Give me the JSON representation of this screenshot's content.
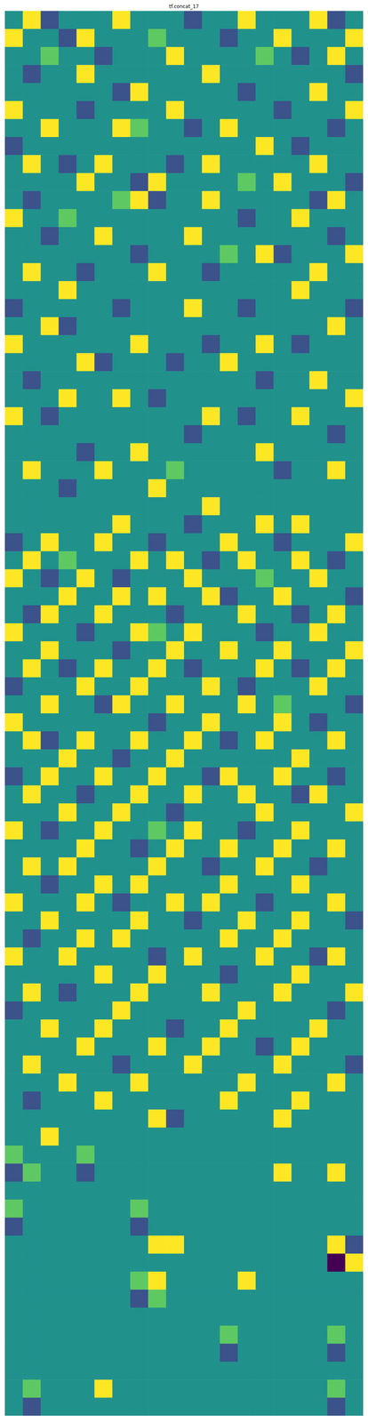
{
  "chart_data": {
    "type": "heatmap",
    "title": "tf.concat_17",
    "tick_labels": false,
    "color_range": [
      0,
      4
    ],
    "cells": [
      [
        2,
        4,
        1,
        2,
        2,
        2,
        4,
        2,
        2,
        2,
        1,
        2,
        2,
        4,
        2,
        2,
        2,
        4,
        1,
        2
      ],
      [
        4,
        2,
        2,
        1,
        4,
        2,
        2,
        2,
        3,
        2,
        2,
        2,
        1,
        2,
        2,
        4,
        2,
        2,
        2,
        4
      ],
      [
        2,
        2,
        3,
        2,
        2,
        1,
        2,
        2,
        2,
        4,
        2,
        2,
        2,
        2,
        3,
        2,
        1,
        2,
        4,
        2
      ],
      [
        2,
        1,
        2,
        2,
        4,
        2,
        2,
        2,
        2,
        2,
        2,
        4,
        2,
        2,
        2,
        2,
        2,
        2,
        2,
        1
      ],
      [
        2,
        2,
        2,
        2,
        2,
        2,
        1,
        4,
        2,
        2,
        2,
        2,
        2,
        1,
        2,
        2,
        2,
        4,
        2,
        2
      ],
      [
        4,
        2,
        2,
        2,
        1,
        2,
        2,
        2,
        2,
        4,
        2,
        2,
        2,
        2,
        2,
        1,
        2,
        2,
        2,
        4
      ],
      [
        2,
        2,
        4,
        2,
        2,
        2,
        4,
        3,
        2,
        2,
        1,
        2,
        4,
        2,
        2,
        2,
        2,
        2,
        1,
        2
      ],
      [
        1,
        2,
        2,
        2,
        2,
        2,
        2,
        2,
        2,
        2,
        2,
        2,
        2,
        2,
        4,
        2,
        1,
        2,
        2,
        2
      ],
      [
        2,
        4,
        2,
        1,
        2,
        4,
        2,
        2,
        2,
        1,
        2,
        4,
        2,
        2,
        2,
        2,
        2,
        4,
        2,
        2
      ],
      [
        2,
        2,
        2,
        2,
        4,
        2,
        2,
        1,
        4,
        2,
        2,
        2,
        2,
        3,
        2,
        4,
        2,
        2,
        2,
        1
      ],
      [
        2,
        1,
        2,
        2,
        2,
        2,
        3,
        4,
        1,
        2,
        2,
        4,
        2,
        2,
        2,
        2,
        2,
        1,
        4,
        2
      ],
      [
        4,
        2,
        2,
        3,
        2,
        2,
        2,
        2,
        2,
        2,
        2,
        2,
        2,
        1,
        2,
        2,
        4,
        2,
        2,
        2
      ],
      [
        2,
        2,
        1,
        2,
        2,
        4,
        2,
        2,
        2,
        2,
        4,
        2,
        2,
        2,
        2,
        2,
        2,
        2,
        1,
        2
      ],
      [
        2,
        2,
        2,
        2,
        2,
        2,
        2,
        1,
        2,
        2,
        2,
        2,
        3,
        2,
        4,
        1,
        2,
        2,
        2,
        4
      ],
      [
        2,
        4,
        2,
        2,
        1,
        2,
        2,
        2,
        4,
        2,
        2,
        1,
        2,
        2,
        2,
        2,
        2,
        4,
        2,
        2
      ],
      [
        2,
        2,
        2,
        4,
        2,
        2,
        2,
        2,
        2,
        2,
        2,
        2,
        2,
        2,
        2,
        2,
        4,
        2,
        2,
        2
      ],
      [
        1,
        2,
        2,
        2,
        2,
        2,
        1,
        2,
        2,
        2,
        4,
        2,
        2,
        1,
        2,
        2,
        2,
        2,
        2,
        1
      ],
      [
        2,
        2,
        4,
        1,
        2,
        2,
        2,
        2,
        2,
        2,
        2,
        2,
        2,
        2,
        2,
        2,
        2,
        2,
        4,
        2
      ],
      [
        4,
        2,
        2,
        2,
        2,
        2,
        2,
        4,
        2,
        2,
        2,
        1,
        2,
        2,
        4,
        2,
        1,
        2,
        2,
        2
      ],
      [
        2,
        2,
        2,
        2,
        4,
        1,
        2,
        2,
        2,
        1,
        2,
        2,
        4,
        2,
        2,
        2,
        2,
        2,
        2,
        2
      ],
      [
        2,
        1,
        2,
        2,
        2,
        2,
        2,
        2,
        2,
        2,
        2,
        2,
        2,
        2,
        1,
        2,
        2,
        4,
        2,
        2
      ],
      [
        2,
        2,
        2,
        4,
        2,
        2,
        4,
        2,
        1,
        2,
        2,
        2,
        2,
        2,
        2,
        2,
        2,
        2,
        2,
        4
      ],
      [
        4,
        2,
        1,
        2,
        2,
        2,
        2,
        2,
        2,
        2,
        2,
        4,
        2,
        1,
        2,
        2,
        4,
        2,
        2,
        2
      ],
      [
        2,
        2,
        2,
        2,
        2,
        2,
        2,
        2,
        2,
        2,
        1,
        2,
        2,
        2,
        2,
        2,
        2,
        2,
        1,
        2
      ],
      [
        2,
        2,
        2,
        2,
        1,
        2,
        2,
        4,
        2,
        2,
        2,
        2,
        2,
        2,
        4,
        2,
        2,
        2,
        2,
        2
      ],
      [
        2,
        4,
        2,
        2,
        2,
        4,
        2,
        2,
        2,
        3,
        2,
        2,
        2,
        2,
        2,
        1,
        2,
        2,
        4,
        2
      ],
      [
        2,
        2,
        2,
        1,
        2,
        2,
        2,
        2,
        4,
        2,
        2,
        2,
        2,
        2,
        2,
        2,
        2,
        2,
        2,
        2
      ],
      [
        2,
        2,
        2,
        2,
        2,
        2,
        2,
        2,
        2,
        2,
        2,
        4,
        2,
        2,
        2,
        2,
        2,
        2,
        2,
        2
      ],
      [
        2,
        2,
        2,
        2,
        2,
        2,
        4,
        2,
        2,
        2,
        1,
        2,
        2,
        2,
        4,
        2,
        4,
        2,
        2,
        2
      ],
      [
        1,
        2,
        4,
        2,
        2,
        4,
        2,
        2,
        1,
        2,
        2,
        2,
        4,
        2,
        2,
        1,
        2,
        2,
        2,
        4
      ],
      [
        2,
        4,
        2,
        3,
        2,
        2,
        2,
        4,
        2,
        4,
        2,
        1,
        2,
        4,
        2,
        2,
        4,
        2,
        1,
        2
      ],
      [
        4,
        2,
        1,
        2,
        4,
        2,
        1,
        2,
        2,
        2,
        4,
        2,
        2,
        2,
        3,
        2,
        2,
        4,
        2,
        2
      ],
      [
        2,
        2,
        2,
        4,
        2,
        2,
        4,
        2,
        4,
        2,
        2,
        4,
        1,
        2,
        2,
        4,
        2,
        2,
        2,
        1
      ],
      [
        2,
        1,
        4,
        2,
        2,
        4,
        2,
        2,
        2,
        1,
        2,
        2,
        2,
        4,
        2,
        2,
        1,
        2,
        4,
        2
      ],
      [
        4,
        2,
        2,
        2,
        1,
        2,
        2,
        4,
        3,
        2,
        4,
        2,
        2,
        2,
        1,
        2,
        2,
        4,
        2,
        2
      ],
      [
        2,
        2,
        4,
        2,
        2,
        2,
        1,
        2,
        2,
        4,
        2,
        2,
        4,
        2,
        2,
        4,
        2,
        2,
        2,
        4
      ],
      [
        2,
        4,
        2,
        1,
        2,
        4,
        2,
        2,
        4,
        2,
        1,
        2,
        2,
        2,
        4,
        2,
        1,
        2,
        4,
        2
      ],
      [
        1,
        2,
        2,
        2,
        4,
        2,
        2,
        4,
        2,
        2,
        2,
        4,
        2,
        1,
        2,
        2,
        2,
        4,
        2,
        2
      ],
      [
        2,
        2,
        4,
        2,
        2,
        1,
        4,
        2,
        2,
        4,
        2,
        2,
        2,
        4,
        2,
        3,
        2,
        2,
        2,
        1
      ],
      [
        4,
        2,
        2,
        2,
        2,
        2,
        2,
        2,
        1,
        2,
        2,
        4,
        2,
        2,
        2,
        4,
        2,
        1,
        2,
        2
      ],
      [
        2,
        4,
        1,
        2,
        4,
        2,
        2,
        4,
        2,
        2,
        4,
        2,
        1,
        2,
        4,
        2,
        2,
        2,
        4,
        2
      ],
      [
        2,
        2,
        2,
        4,
        2,
        2,
        1,
        2,
        2,
        4,
        2,
        2,
        2,
        2,
        2,
        2,
        4,
        2,
        2,
        2
      ],
      [
        1,
        2,
        4,
        2,
        2,
        4,
        2,
        2,
        4,
        2,
        2,
        1,
        4,
        2,
        2,
        4,
        2,
        2,
        1,
        2
      ],
      [
        2,
        4,
        2,
        2,
        1,
        2,
        2,
        4,
        2,
        2,
        4,
        2,
        2,
        4,
        2,
        2,
        1,
        4,
        2,
        2
      ],
      [
        2,
        2,
        2,
        4,
        2,
        2,
        4,
        2,
        2,
        1,
        2,
        2,
        2,
        2,
        4,
        2,
        2,
        2,
        2,
        4
      ],
      [
        4,
        2,
        1,
        2,
        2,
        4,
        2,
        2,
        3,
        2,
        4,
        2,
        2,
        1,
        2,
        2,
        4,
        2,
        2,
        2
      ],
      [
        2,
        2,
        2,
        2,
        4,
        2,
        2,
        1,
        2,
        4,
        2,
        2,
        4,
        2,
        2,
        4,
        2,
        2,
        4,
        2
      ],
      [
        2,
        4,
        2,
        4,
        2,
        2,
        2,
        2,
        4,
        2,
        2,
        1,
        2,
        2,
        4,
        2,
        2,
        1,
        2,
        2
      ],
      [
        2,
        2,
        1,
        2,
        2,
        4,
        2,
        4,
        2,
        2,
        2,
        2,
        4,
        2,
        2,
        2,
        4,
        2,
        2,
        2
      ],
      [
        4,
        2,
        2,
        2,
        4,
        2,
        1,
        2,
        2,
        4,
        2,
        4,
        2,
        2,
        1,
        2,
        2,
        2,
        4,
        2
      ],
      [
        2,
        2,
        4,
        2,
        2,
        2,
        2,
        4,
        2,
        2,
        1,
        2,
        2,
        4,
        2,
        2,
        4,
        2,
        2,
        1
      ],
      [
        2,
        1,
        2,
        2,
        4,
        2,
        4,
        2,
        2,
        2,
        2,
        2,
        4,
        2,
        2,
        4,
        2,
        2,
        2,
        2
      ],
      [
        4,
        2,
        2,
        4,
        2,
        2,
        2,
        2,
        1,
        2,
        4,
        2,
        2,
        2,
        4,
        2,
        2,
        1,
        4,
        2
      ],
      [
        2,
        2,
        2,
        2,
        2,
        4,
        2,
        2,
        4,
        2,
        2,
        2,
        1,
        2,
        2,
        2,
        4,
        2,
        2,
        2
      ],
      [
        2,
        4,
        2,
        1,
        2,
        2,
        2,
        4,
        2,
        2,
        2,
        4,
        2,
        2,
        2,
        4,
        2,
        2,
        2,
        4
      ],
      [
        1,
        2,
        2,
        2,
        2,
        2,
        4,
        2,
        2,
        2,
        2,
        2,
        2,
        4,
        2,
        2,
        2,
        2,
        1,
        2
      ],
      [
        2,
        2,
        4,
        2,
        2,
        4,
        2,
        2,
        2,
        1,
        2,
        2,
        4,
        2,
        2,
        2,
        2,
        4,
        2,
        2
      ],
      [
        2,
        2,
        2,
        2,
        4,
        2,
        2,
        2,
        4,
        2,
        2,
        4,
        2,
        2,
        1,
        2,
        4,
        2,
        2,
        2
      ],
      [
        2,
        4,
        2,
        2,
        2,
        2,
        1,
        2,
        2,
        2,
        4,
        2,
        2,
        2,
        2,
        4,
        2,
        2,
        2,
        1
      ],
      [
        2,
        2,
        2,
        4,
        2,
        2,
        2,
        4,
        2,
        2,
        2,
        2,
        2,
        4,
        2,
        2,
        2,
        2,
        4,
        2
      ],
      [
        2,
        1,
        2,
        2,
        2,
        4,
        2,
        2,
        2,
        2,
        2,
        2,
        4,
        2,
        2,
        2,
        4,
        2,
        2,
        2
      ],
      [
        2,
        2,
        2,
        2,
        2,
        2,
        2,
        2,
        4,
        1,
        2,
        2,
        2,
        2,
        2,
        4,
        2,
        2,
        2,
        2
      ],
      [
        2,
        2,
        4,
        2,
        2,
        2,
        2,
        2,
        2,
        2,
        2,
        2,
        2,
        2,
        2,
        2,
        2,
        2,
        2,
        2
      ],
      [
        3,
        2,
        2,
        2,
        3,
        2,
        2,
        2,
        2,
        2,
        2,
        2,
        2,
        2,
        2,
        2,
        2,
        2,
        2,
        2
      ],
      [
        1,
        3,
        2,
        2,
        1,
        2,
        2,
        2,
        2,
        2,
        2,
        2,
        2,
        2,
        2,
        4,
        2,
        2,
        4,
        2
      ],
      [
        2,
        2,
        2,
        2,
        2,
        2,
        2,
        2,
        2,
        2,
        2,
        2,
        2,
        2,
        2,
        2,
        2,
        2,
        2,
        2
      ],
      [
        3,
        2,
        2,
        2,
        2,
        2,
        2,
        3,
        2,
        2,
        2,
        2,
        2,
        2,
        2,
        2,
        2,
        2,
        2,
        2
      ],
      [
        1,
        2,
        2,
        2,
        2,
        2,
        2,
        1,
        2,
        2,
        2,
        2,
        2,
        2,
        2,
        2,
        2,
        2,
        2,
        2
      ],
      [
        2,
        2,
        2,
        2,
        2,
        2,
        2,
        2,
        4,
        4,
        2,
        2,
        2,
        2,
        2,
        2,
        2,
        2,
        4,
        1
      ],
      [
        2,
        2,
        2,
        2,
        2,
        2,
        2,
        2,
        2,
        2,
        2,
        2,
        2,
        2,
        2,
        2,
        2,
        2,
        0,
        4
      ],
      [
        2,
        2,
        2,
        2,
        2,
        2,
        2,
        3,
        4,
        2,
        2,
        2,
        2,
        4,
        2,
        2,
        2,
        2,
        2,
        2
      ],
      [
        2,
        2,
        2,
        2,
        2,
        2,
        2,
        1,
        3,
        2,
        2,
        2,
        2,
        2,
        2,
        2,
        2,
        2,
        2,
        2
      ],
      [
        2,
        2,
        2,
        2,
        2,
        2,
        2,
        2,
        2,
        2,
        2,
        2,
        2,
        2,
        2,
        2,
        2,
        2,
        2,
        2
      ],
      [
        2,
        2,
        2,
        2,
        2,
        2,
        2,
        2,
        2,
        2,
        2,
        2,
        3,
        2,
        2,
        2,
        2,
        2,
        3,
        2
      ],
      [
        2,
        2,
        2,
        2,
        2,
        2,
        2,
        2,
        2,
        2,
        2,
        2,
        1,
        2,
        2,
        2,
        2,
        2,
        1,
        2
      ],
      [
        2,
        2,
        2,
        2,
        2,
        2,
        2,
        2,
        2,
        2,
        2,
        2,
        2,
        2,
        2,
        2,
        2,
        2,
        2,
        2
      ],
      [
        2,
        3,
        2,
        2,
        2,
        4,
        2,
        2,
        2,
        2,
        2,
        2,
        2,
        2,
        2,
        2,
        2,
        2,
        3,
        2
      ],
      [
        2,
        1,
        2,
        2,
        2,
        2,
        2,
        2,
        2,
        2,
        2,
        2,
        2,
        2,
        2,
        2,
        2,
        2,
        1,
        2
      ]
    ]
  }
}
